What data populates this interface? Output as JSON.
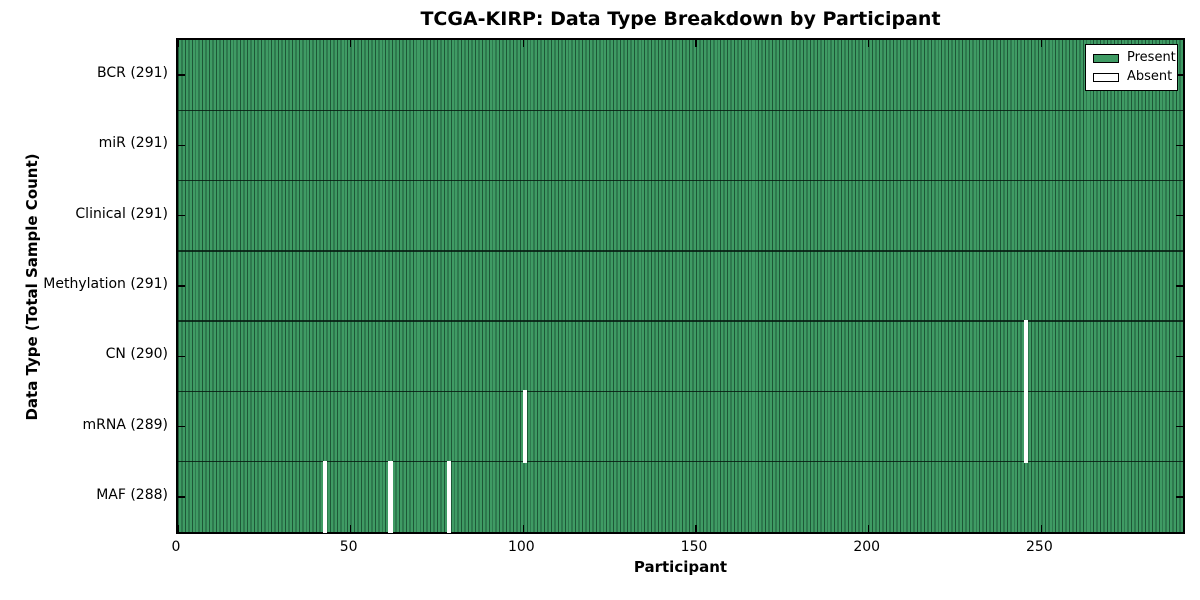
{
  "title": "TCGA-KIRP: Data Type Breakdown by Participant",
  "chart_data": {
    "type": "heatmap",
    "title": "TCGA-KIRP: Data Type Breakdown by Participant",
    "xlabel": "Participant",
    "ylabel": "Data Type (Total Sample Count)",
    "n_participants": 291,
    "xlim": [
      0,
      291
    ],
    "x_ticks": [
      0,
      50,
      100,
      150,
      200,
      250
    ],
    "grid": false,
    "legend_position": "upper right",
    "rows": [
      {
        "data_type": "BCR",
        "label": "BCR (291)",
        "present_count": 291,
        "absent_participants": []
      },
      {
        "data_type": "miR",
        "label": "miR (291)",
        "present_count": 291,
        "absent_participants": []
      },
      {
        "data_type": "Clinical",
        "label": "Clinical (291)",
        "present_count": 291,
        "absent_participants": []
      },
      {
        "data_type": "Methylation",
        "label": "Methylation (291)",
        "present_count": 291,
        "absent_participants": []
      },
      {
        "data_type": "CN",
        "label": "CN (290)",
        "present_count": 290,
        "absent_participants": [
          245
        ]
      },
      {
        "data_type": "mRNA",
        "label": "mRNA (289)",
        "present_count": 289,
        "absent_participants": [
          100,
          245
        ]
      },
      {
        "data_type": "MAF",
        "label": "MAF (288)",
        "present_count": 288,
        "absent_participants": [
          42,
          61,
          78
        ]
      }
    ],
    "legend": [
      {
        "label": "Present",
        "color": "#3f9b64"
      },
      {
        "label": "Absent",
        "color": "#ffffff"
      }
    ],
    "colors": {
      "present_fill": "#3f9b64",
      "bar_edge": "#1d5737",
      "absent_fill": "#ffffff",
      "axis_and_text": "#000000",
      "background": "#ffffff"
    }
  }
}
